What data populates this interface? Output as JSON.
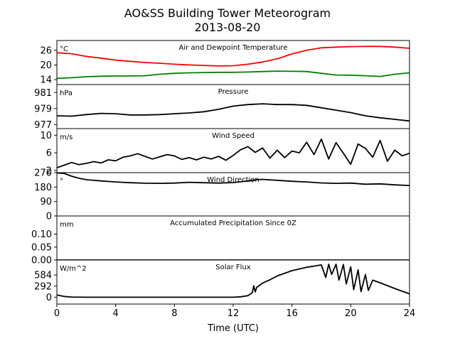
{
  "figure": {
    "title": "AO&SS Building Tower Meteorogram",
    "subtitle": "2013-08-20",
    "xlabel": "Time (UTC)",
    "x_ticks": [
      "0",
      "4",
      "8",
      "12",
      "16",
      "20",
      "24"
    ]
  },
  "chart_data": [
    {
      "type": "line",
      "title": "Air and Dewpoint Temperature",
      "unit_label": "°C",
      "xlim": [
        0,
        24
      ],
      "ylim": [
        12,
        30
      ],
      "yticks": [
        14,
        20,
        26
      ],
      "ytick_labels": [
        "14",
        "20",
        "26"
      ],
      "series": [
        {
          "color": "#ff0000",
          "x": [
            0,
            1,
            2,
            3,
            4,
            5,
            6,
            7,
            8,
            9,
            10,
            11,
            12,
            13,
            14,
            15,
            16,
            17,
            18,
            19,
            20,
            21,
            22,
            23,
            24
          ],
          "values": [
            25.0,
            24.6,
            23.5,
            22.8,
            22.0,
            21.5,
            21.0,
            20.7,
            20.3,
            20.0,
            19.8,
            19.6,
            19.7,
            20.3,
            21.2,
            22.5,
            24.5,
            26.0,
            27.0,
            27.3,
            27.5,
            27.6,
            27.6,
            27.3,
            26.8
          ]
        },
        {
          "color": "#008000",
          "x": [
            0,
            1,
            2,
            3,
            4,
            5,
            6,
            7,
            8,
            9,
            10,
            11,
            12,
            13,
            14,
            15,
            16,
            17,
            18,
            19,
            20,
            21,
            22,
            23,
            24
          ],
          "values": [
            14.5,
            14.8,
            15.2,
            15.4,
            15.5,
            15.5,
            15.6,
            16.2,
            16.6,
            16.8,
            16.9,
            17.0,
            17.0,
            17.1,
            17.3,
            17.5,
            17.4,
            17.3,
            16.6,
            15.9,
            15.8,
            15.6,
            15.3,
            16.2,
            16.8
          ]
        }
      ]
    },
    {
      "type": "line",
      "title": "Pressure",
      "unit_label": "hPa",
      "xlim": [
        0,
        24
      ],
      "ylim": [
        976.5,
        982.0
      ],
      "yticks": [
        977,
        979,
        981
      ],
      "ytick_labels": [
        "977",
        "979",
        "981"
      ],
      "series": [
        {
          "color": "#000000",
          "x": [
            0,
            1,
            2,
            3,
            4,
            5,
            6,
            7,
            8,
            9,
            10,
            11,
            12,
            13,
            14,
            15,
            16,
            17,
            18,
            19,
            20,
            21,
            22,
            23,
            24
          ],
          "values": [
            978.1,
            978.05,
            978.25,
            978.4,
            978.35,
            978.2,
            978.2,
            978.25,
            978.35,
            978.45,
            978.6,
            978.9,
            979.3,
            979.5,
            979.6,
            979.5,
            979.5,
            979.4,
            979.1,
            978.8,
            978.5,
            978.1,
            977.85,
            977.65,
            977.45
          ]
        }
      ]
    },
    {
      "type": "line",
      "title": "Wind Speed",
      "unit_label": "m/s",
      "xlim": [
        0,
        24
      ],
      "ylim": [
        1.5,
        11.5
      ],
      "yticks": [
        2,
        6,
        10
      ],
      "ytick_labels": [
        "2",
        "6",
        "10"
      ],
      "series": [
        {
          "color": "#000000",
          "x": [
            0,
            0.5,
            1,
            1.5,
            2,
            2.5,
            3,
            3.5,
            4,
            4.5,
            5,
            5.5,
            6,
            6.5,
            7,
            7.5,
            8,
            8.5,
            9,
            9.5,
            10,
            10.5,
            11,
            11.5,
            12,
            12.5,
            13,
            13.5,
            14,
            14.5,
            15,
            15.5,
            16,
            16.5,
            17,
            17.5,
            18,
            18.5,
            19,
            19.5,
            20,
            20.5,
            21,
            21.5,
            22,
            22.5,
            23,
            23.5,
            24
          ],
          "values": [
            2.6,
            3.2,
            3.8,
            3.3,
            3.6,
            4.0,
            3.7,
            4.4,
            4.2,
            5.0,
            5.3,
            5.8,
            5.2,
            4.6,
            5.1,
            5.6,
            5.3,
            4.5,
            4.9,
            4.4,
            5.0,
            4.6,
            5.2,
            4.3,
            5.4,
            6.7,
            7.4,
            6.1,
            7.1,
            4.8,
            6.6,
            4.9,
            6.4,
            6.0,
            8.4,
            5.6,
            9.1,
            4.6,
            8.3,
            5.9,
            3.4,
            8.0,
            7.0,
            5.0,
            8.8,
            4.1,
            6.6,
            5.3,
            5.9
          ]
        }
      ]
    },
    {
      "type": "line",
      "title": "Wind Direction",
      "unit_label": "°",
      "xlim": [
        0,
        24
      ],
      "ylim": [
        0,
        270
      ],
      "yticks": [
        0,
        90,
        180,
        270
      ],
      "ytick_labels": [
        "0",
        "90",
        "180",
        "270"
      ],
      "series": [
        {
          "color": "#000000",
          "x": [
            0,
            0.5,
            1,
            1.5,
            2,
            3,
            4,
            5,
            6,
            7,
            8,
            9,
            10,
            11,
            12,
            13,
            13.5,
            14,
            15,
            16,
            17,
            18,
            19,
            20,
            21,
            22,
            23,
            24
          ],
          "values": [
            268,
            265,
            248,
            235,
            226,
            218,
            212,
            207,
            204,
            203,
            205,
            210,
            207,
            205,
            208,
            218,
            225,
            228,
            222,
            216,
            212,
            206,
            203,
            205,
            198,
            200,
            194,
            190
          ]
        }
      ]
    },
    {
      "type": "line",
      "title": "Accumulated Precipitation Since 0Z",
      "unit_label": "mm",
      "xlim": [
        0,
        24
      ],
      "ylim": [
        0,
        0.17
      ],
      "yticks": [
        0.0,
        0.05,
        0.1
      ],
      "ytick_labels": [
        "0.00",
        "0.05",
        "0.10"
      ],
      "series": [
        {
          "color": "#000000",
          "x": [
            0,
            24
          ],
          "values": [
            0,
            0
          ]
        }
      ]
    },
    {
      "type": "line",
      "title": "Solar Flux",
      "unit_label": "W/m^2",
      "xlim": [
        0,
        24
      ],
      "ylim": [
        -180,
        980
      ],
      "yticks": [
        0,
        292,
        584
      ],
      "ytick_labels": [
        "0",
        "292",
        "584"
      ],
      "series": [
        {
          "color": "#000000",
          "x": [
            0,
            0.5,
            1,
            2,
            4,
            6,
            8,
            10,
            12,
            12.5,
            13,
            13.3,
            13.4,
            13.5,
            13.6,
            14,
            14.5,
            15,
            16,
            17,
            17.5,
            18,
            18.3,
            18.5,
            18.7,
            19,
            19.2,
            19.5,
            19.7,
            20,
            20.2,
            20.5,
            20.7,
            21,
            21.2,
            21.5,
            22,
            23,
            24
          ],
          "values": [
            60,
            20,
            5,
            0,
            0,
            0,
            0,
            0,
            0,
            10,
            40,
            120,
            300,
            140,
            260,
            370,
            460,
            560,
            700,
            790,
            820,
            850,
            520,
            870,
            600,
            870,
            450,
            860,
            350,
            800,
            200,
            720,
            150,
            600,
            180,
            450,
            380,
            230,
            90
          ]
        }
      ]
    }
  ]
}
